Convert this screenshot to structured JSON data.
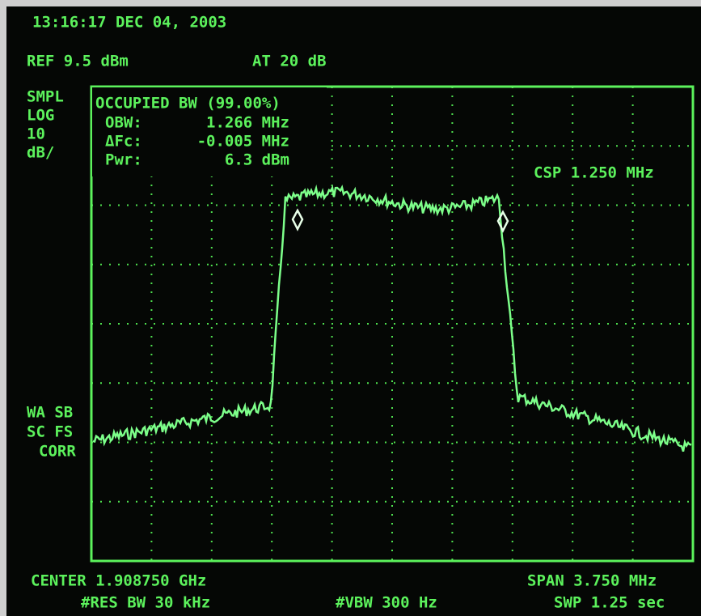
{
  "header": {
    "timestamp": "13:16:17 DEC 04, 2003",
    "reference": "REF 9.5 dBm",
    "attenuation": "AT 20 dB"
  },
  "scale_labels": [
    "SMPL",
    "LOG",
    "10",
    "dB/"
  ],
  "measurement": {
    "title": "OCCUPIED BW (99.00%)",
    "rows": [
      [
        "OBW:",
        "1.266 MHz"
      ],
      [
        "ΔFc:",
        "-0.005 MHz"
      ],
      [
        "Pwr:",
        "6.3 dBm"
      ]
    ],
    "channel_spacing": "CSP 1.250 MHz"
  },
  "status_labels": [
    "WA SB",
    "SC FS",
    "CORR"
  ],
  "footer": {
    "center": "CENTER 1.908750 GHz",
    "span": "SPAN 3.750 MHz",
    "res_bw": "#RES BW 30 kHz",
    "vbw": "#VBW 300 Hz",
    "sweep": "SWP 1.25 sec"
  }
}
